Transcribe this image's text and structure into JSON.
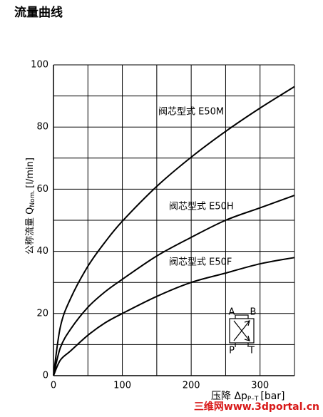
{
  "title": "流量曲线",
  "chart_data": {
    "type": "line",
    "xlabel": {
      "main": "压降 Δp",
      "sub": "P–T",
      "unit": "[bar]"
    },
    "ylabel": {
      "main": "公称流量 Q",
      "sub": "Nom.",
      "unit": "[l/min]"
    },
    "x": [
      0,
      10,
      25,
      50,
      75,
      100,
      150,
      200,
      250,
      300,
      350
    ],
    "series": [
      {
        "name": "阀芯型式 E50M",
        "color": "#000000",
        "values": [
          0,
          15.7,
          24.9,
          35.2,
          43,
          49.7,
          60.9,
          70.3,
          78.6,
          86.1,
          93
        ]
      },
      {
        "name": "阀芯型式 E50H",
        "color": "#000000",
        "values": [
          0,
          9,
          15,
          22,
          27,
          31,
          38.5,
          44.5,
          50,
          54,
          58
        ]
      },
      {
        "name": "阀芯型式 E50F",
        "color": "#000000",
        "values": [
          0,
          5,
          8,
          13,
          17,
          20,
          25.5,
          30,
          33,
          36,
          38
        ]
      }
    ],
    "xlim": [
      0,
      350
    ],
    "ylim": [
      0,
      100
    ],
    "xticks": [
      0,
      100,
      200,
      300
    ],
    "yticks": [
      0,
      20,
      40,
      60,
      80,
      100
    ],
    "minor_xticks": [
      50,
      150,
      250,
      350
    ],
    "minor_yticks": [
      10,
      30,
      50,
      70,
      90
    ],
    "grid": true
  },
  "symbol_labels": [
    "A",
    "B",
    "P",
    "T"
  ],
  "watermark": "三维网www.3dportal.cn"
}
